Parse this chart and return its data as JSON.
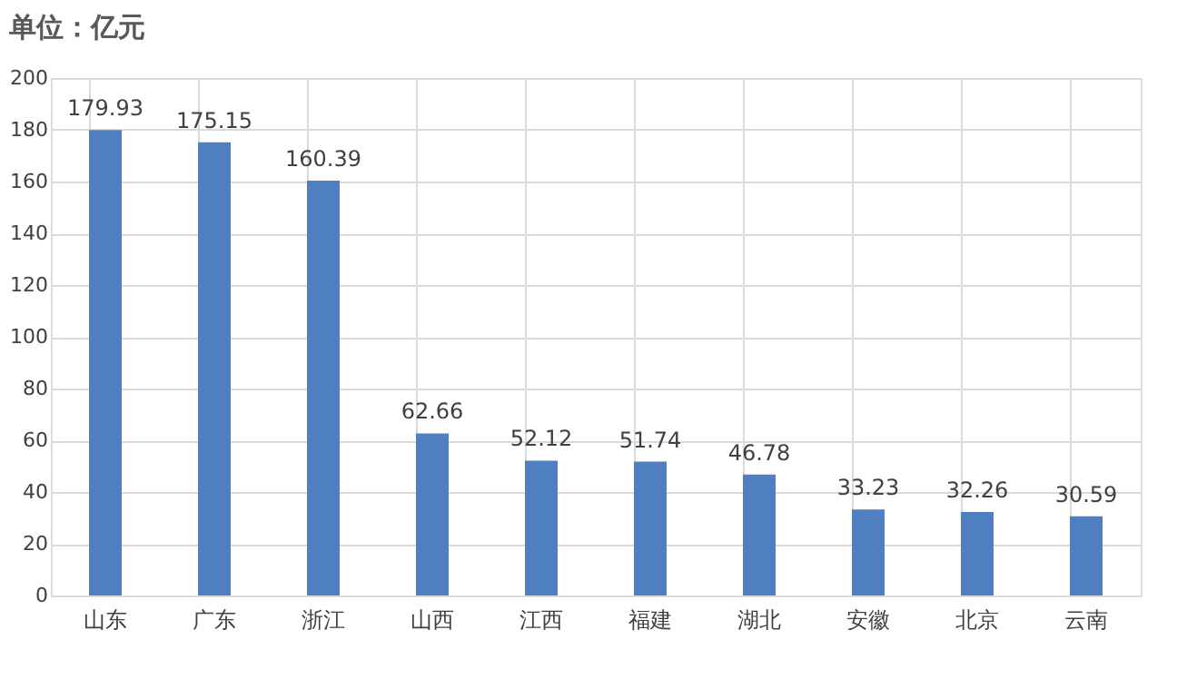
{
  "chart_data": {
    "type": "bar",
    "title": "单位：亿元",
    "categories": [
      "山东",
      "广东",
      "浙江",
      "山西",
      "江西",
      "福建",
      "湖北",
      "安徽",
      "北京",
      "云南"
    ],
    "values": [
      179.93,
      175.15,
      160.39,
      62.66,
      52.12,
      51.74,
      46.78,
      33.23,
      32.26,
      30.59
    ],
    "color": "#4f7fc0",
    "ylim": [
      0,
      200
    ],
    "yticks": [
      0,
      20,
      40,
      60,
      80,
      100,
      120,
      140,
      160,
      180,
      200
    ],
    "grid": true,
    "data_labels": true
  }
}
